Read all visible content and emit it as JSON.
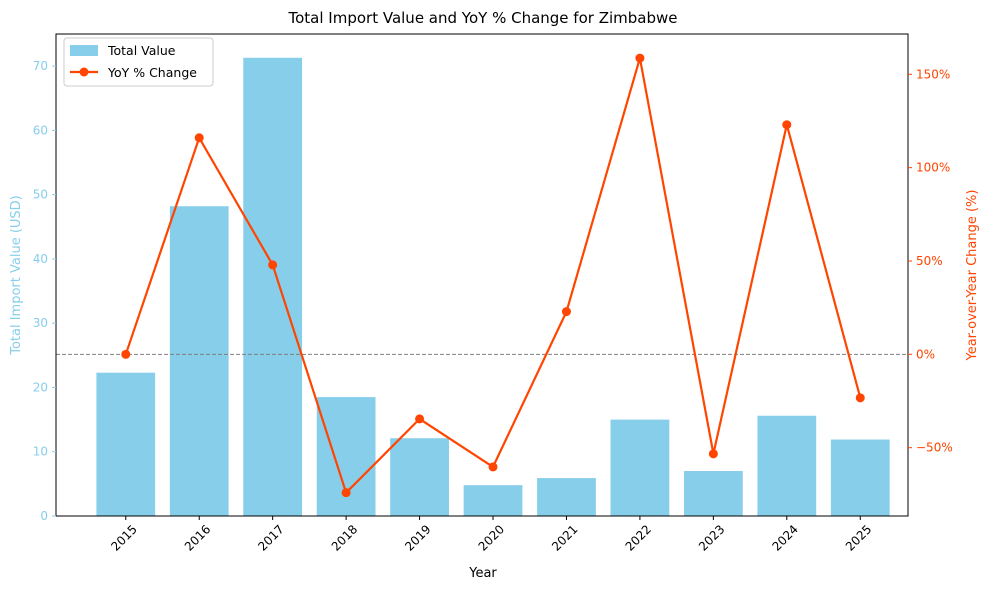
{
  "chart_data": {
    "type": "bar+line",
    "title": "Total Import Value and YoY % Change for Zimbabwe",
    "xlabel": "Year",
    "ylabel_left": "Total Import Value (USD)",
    "ylabel_right": "Year-over-Year Change (%)",
    "categories": [
      "2015",
      "2016",
      "2017",
      "2018",
      "2019",
      "2020",
      "2021",
      "2022",
      "2023",
      "2024",
      "2025"
    ],
    "series": [
      {
        "name": "Total Value",
        "kind": "bar",
        "axis": "left",
        "color": "#87CEEB",
        "values": [
          22.3,
          48.2,
          71.3,
          18.5,
          12.1,
          4.8,
          5.9,
          15.0,
          7.0,
          15.6,
          11.9
        ]
      },
      {
        "name": "YoY % Change",
        "kind": "line",
        "axis": "right",
        "color": "#FF4500",
        "values": [
          0,
          116,
          47.9,
          -74.1,
          -34.6,
          -60.3,
          22.9,
          158.7,
          -53.3,
          123,
          -23.3
        ]
      }
    ],
    "ylim_left": [
      0,
      75
    ],
    "yticks_left": [
      0,
      10,
      20,
      30,
      40,
      50,
      60,
      70
    ],
    "ylim_right": [
      -86.6,
      171.6
    ],
    "yticks_right": [
      -50,
      0,
      50,
      100,
      150
    ],
    "yticklabels_right": [
      "−50%",
      "0%",
      "50%",
      "100%",
      "150%"
    ],
    "zero_reference_line": true,
    "legend_position": "top-left",
    "colors": {
      "bar": "#87CEEB",
      "line": "#FF4500",
      "left_axis_text": "#87CEEB",
      "right_axis_text": "#FF4500"
    }
  }
}
